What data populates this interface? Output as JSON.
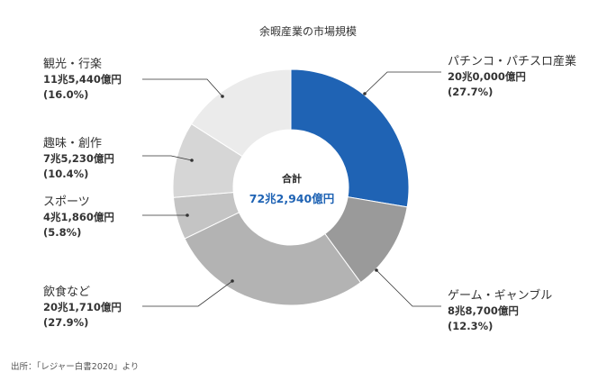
{
  "chart_data": {
    "type": "donut",
    "title": "余暇産業の市場規模",
    "center_label": "合計",
    "center_value": "72兆2,940億円",
    "slices": [
      {
        "name": "パチンコ・パチスロ産業",
        "value_text": "20兆0,000億円",
        "pct_text": "(27.7%)",
        "value": 200000,
        "pct": 27.7,
        "color": "#1f63b4"
      },
      {
        "name": "ゲーム・ギャンブル",
        "value_text": "8兆8,700億円",
        "pct_text": "(12.3%)",
        "value": 88700,
        "pct": 12.3,
        "color": "#9a9a9a"
      },
      {
        "name": "飲食など",
        "value_text": "20兆1,710億円",
        "pct_text": "(27.9%)",
        "value": 201710,
        "pct": 27.9,
        "color": "#b3b3b3"
      },
      {
        "name": "スポーツ",
        "value_text": "4兆1,860億円",
        "pct_text": "(5.8%)",
        "value": 41860,
        "pct": 5.8,
        "color": "#c4c4c4"
      },
      {
        "name": "趣味・創作",
        "value_text": "7兆5,230億円",
        "pct_text": "(10.4%)",
        "value": 75230,
        "pct": 10.4,
        "color": "#d6d6d6"
      },
      {
        "name": "観光・行楽",
        "value_text": "11兆5,440億円",
        "pct_text": "(16.0%)",
        "value": 115440,
        "pct": 16.0,
        "color": "#ebebeb"
      }
    ],
    "source": "出所：「レジャー白書2020」より"
  }
}
